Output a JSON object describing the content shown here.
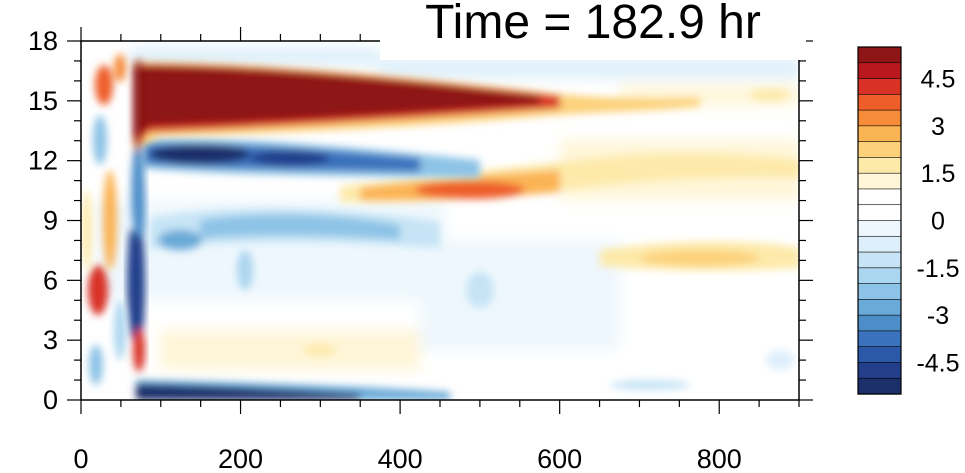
{
  "chart_data": {
    "type": "heatmap",
    "title": "Time = 182.9 hr",
    "xlabel": "",
    "ylabel": "",
    "xlim": [
      0,
      900
    ],
    "ylim": [
      0,
      18
    ],
    "x_ticks": [
      "0",
      "200",
      "400",
      "600",
      "800"
    ],
    "y_ticks": [
      "0",
      "3",
      "6",
      "9",
      "12",
      "15",
      "18"
    ],
    "colorbar": {
      "levels": [
        -5.5,
        -5,
        -4.5,
        -4,
        -3.5,
        -3,
        -2.5,
        -2,
        -1.5,
        -1,
        -0.5,
        0,
        0.5,
        1,
        1.5,
        2,
        2.5,
        3,
        3.5,
        4,
        4.5,
        5,
        5.5
      ],
      "labels": [
        "4.5",
        "3",
        "1.5",
        "0",
        "-1.5",
        "-3",
        "-4.5"
      ],
      "colors": [
        "#1b2f6a",
        "#233f8c",
        "#2c58a8",
        "#3a72bd",
        "#4d8ec9",
        "#6aaad8",
        "#8dc3e6",
        "#abd6ef",
        "#c6e4f5",
        "#ddeffa",
        "#eef7fd",
        "#ffffff",
        "#ffffff",
        "#fff6d8",
        "#fdeaaa",
        "#fcd17a",
        "#fbb454",
        "#f68b3a",
        "#ee5e2a",
        "#d93125",
        "#b8181e",
        "#8e1515"
      ]
    },
    "bands": [
      {
        "label": "upper positive band",
        "x_start": 70,
        "x_end": 600,
        "y_center": 15.0,
        "value": 5.5
      },
      {
        "label": "negative band",
        "x_start": 70,
        "x_end": 480,
        "y_center": 12.4,
        "value": -4.5
      },
      {
        "label": "secondary positive band",
        "x_start": 340,
        "x_end": 900,
        "y_center": 10.6,
        "value": 2.5
      },
      {
        "label": "mid positive band",
        "x_start": 600,
        "x_end": 900,
        "y_center": 7.3,
        "value": 1.0
      },
      {
        "label": "mid negative band",
        "x_start": 100,
        "x_end": 450,
        "y_center": 8.5,
        "value": -1.5
      },
      {
        "label": "surface negative band",
        "x_start": 70,
        "x_end": 450,
        "y_center": 0.5,
        "value": -5.0
      }
    ]
  }
}
